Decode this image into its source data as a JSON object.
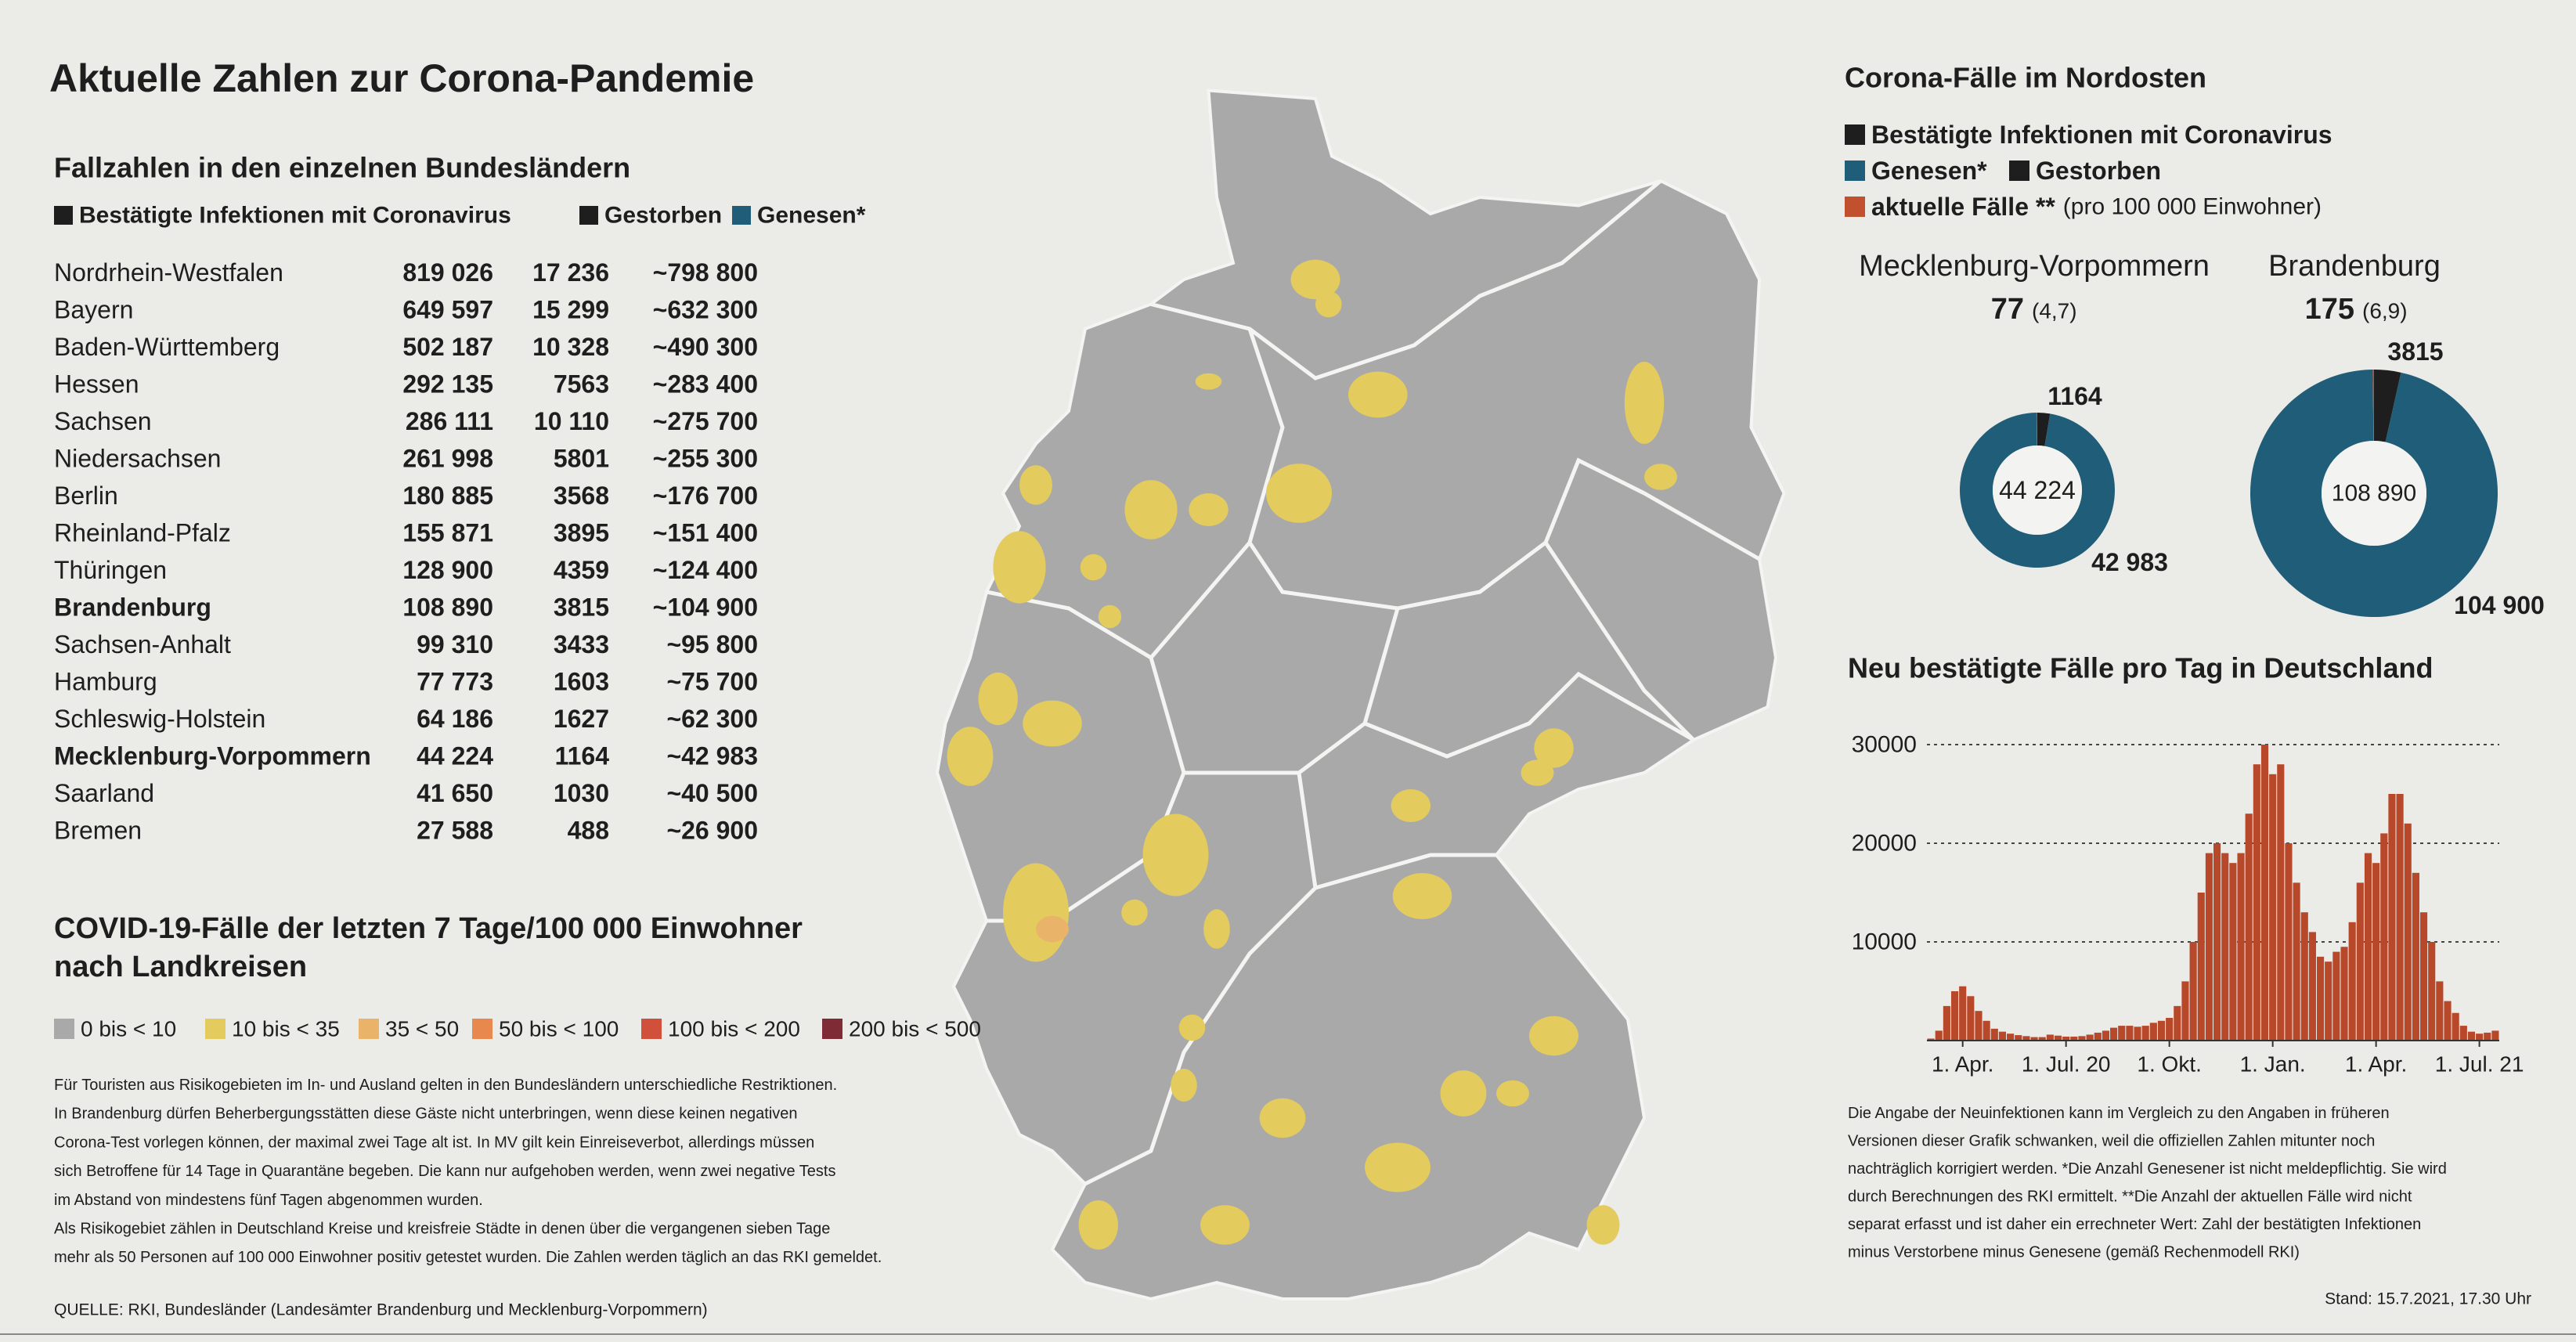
{
  "title": "Aktuelle Zahlen zur Corona-Pandemie",
  "table": {
    "title": "Fallzahlen in den einzelnen Bundesländern",
    "legend": [
      {
        "name": "Bestätigte Infektionen mit Coronavirus",
        "color": "#1e1e1e"
      },
      {
        "name": "Gestorben",
        "color": "#1e1e1e"
      },
      {
        "name": "Genesen*",
        "color": "#1f5d78"
      }
    ],
    "rows": [
      {
        "cells": [
          "Nordrhein-Westfalen",
          "819 026",
          "17 236",
          "~798 800"
        ]
      },
      {
        "cells": [
          "Bayern",
          "649 597",
          "15 299",
          "~632 300"
        ]
      },
      {
        "cells": [
          "Baden-Württemberg",
          "502 187",
          "10 328",
          "~490 300"
        ]
      },
      {
        "cells": [
          "Hessen",
          "292 135",
          "7563",
          "~283 400"
        ]
      },
      {
        "cells": [
          "Sachsen",
          "286 111",
          "10 110",
          "~275 700"
        ]
      },
      {
        "cells": [
          "Niedersachsen",
          "261 998",
          "5801",
          "~255 300"
        ]
      },
      {
        "cells": [
          "Berlin",
          "180 885",
          "3568",
          "~176 700"
        ]
      },
      {
        "cells": [
          "Rheinland-Pfalz",
          "155 871",
          "3895",
          "~151 400"
        ]
      },
      {
        "cells": [
          "Thüringen",
          "128 900",
          "4359",
          "~124 400"
        ]
      },
      {
        "cells": [
          "Brandenburg",
          "108 890",
          "3815",
          "~104 900"
        ],
        "bold": true
      },
      {
        "cells": [
          "Sachsen-Anhalt",
          "99 310",
          "3433",
          "~95 800"
        ]
      },
      {
        "cells": [
          "Hamburg",
          "77 773",
          "1603",
          "~75 700"
        ]
      },
      {
        "cells": [
          "Schleswig-Holstein",
          "64 186",
          "1627",
          "~62 300"
        ]
      },
      {
        "cells": [
          "Mecklenburg-Vorpommern",
          "44 224",
          "1164",
          "~42 983"
        ],
        "bold": true
      },
      {
        "cells": [
          "Saarland",
          "41 650",
          "1030",
          "~40 500"
        ]
      },
      {
        "cells": [
          "Bremen",
          "27 588",
          "488",
          "~26 900"
        ]
      }
    ]
  },
  "map": {
    "title_lines": [
      "COVID-19-Fälle der letzten 7 Tage/100 000 Einwohner",
      "nach Landkreisen"
    ],
    "legend": [
      {
        "label": "0 bis < 10",
        "color": "#a9a9a9"
      },
      {
        "label": "10 bis < 35",
        "color": "#e3cb5e"
      },
      {
        "label": "35 < 50",
        "color": "#eab36a"
      },
      {
        "label": "50 bis < 100",
        "color": "#e8874e"
      },
      {
        "label": "100 bis < 200",
        "color": "#d0503c"
      },
      {
        "label": "200 bis < 500",
        "color": "#7e2b35"
      }
    ]
  },
  "notes": [
    "Für Touristen aus Risikogebieten im In- und Ausland gelten in den Bundesländern unterschiedliche Restriktionen.",
    "In Brandenburg dürfen Beherbergungsstätten diese Gäste nicht unterbringen, wenn diese keinen negativen",
    "Corona-Test vorlegen können, der maximal zwei Tage alt ist. In MV gilt kein Einreiseverbot, allerdings müssen",
    "sich Betroffene für 14 Tage in Quarantäne begeben. Die kann nur aufgehoben werden, wenn zwei negative Tests",
    "im Abstand von mindestens fünf Tagen abgenommen wurden.",
    "Als Risikogebiet zählen in Deutschland Kreise und kreisfreie Städte in denen über die vergangenen sieben Tage",
    "mehr als 50 Personen auf 100 000 Einwohner positiv getestet wurden. Die Zahlen werden täglich an das RKI gemeldet."
  ],
  "source": "QUELLE: RKI, Bundesländer (Landesämter Brandenburg und Mecklenburg-Vorpommern)",
  "northeast": {
    "title": "Corona-Fälle im Nordosten",
    "legend": [
      {
        "name": "Bestätigte Infektionen mit Coronavirus",
        "color": "#1e1e1e"
      },
      {
        "name": "Genesen*",
        "color": "#1f5d78"
      },
      {
        "name": "Gestorben",
        "color": "#1e1e1e"
      },
      {
        "name": "aktuelle Fälle **",
        "note": "(pro 100 000 Einwohner)",
        "color": "#c0502e"
      }
    ]
  },
  "chart_data": [
    {
      "type": "donut",
      "title": "Mecklenburg-Vorpommern",
      "total": {
        "value": 44224,
        "label": "44 224"
      },
      "deaths": 1164,
      "recovered": {
        "value": 42983,
        "label": "42 983"
      },
      "active": 77,
      "rate": {
        "value": 4.7,
        "label": "(4,7)"
      }
    },
    {
      "type": "donut",
      "title": "Brandenburg",
      "total": {
        "value": 108890,
        "label": "108 890"
      },
      "deaths": 3815,
      "recovered": {
        "value": 104900,
        "label": "104 900"
      },
      "active": 175,
      "rate": {
        "value": 6.9,
        "label": "(6,9)"
      }
    },
    {
      "type": "bar",
      "title": "Neu bestätigte Fälle pro Tag in Deutschland",
      "categories": [
        null,
        null,
        null,
        null,
        "1. Apr.",
        null,
        null,
        null,
        null,
        null,
        null,
        null,
        null,
        null,
        null,
        null,
        null,
        "1. Jul. 20",
        null,
        null,
        null,
        null,
        null,
        null,
        null,
        null,
        null,
        null,
        null,
        null,
        "1. Okt.",
        null,
        null,
        null,
        null,
        null,
        null,
        null,
        null,
        null,
        null,
        null,
        null,
        "1. Jan.",
        null,
        null,
        null,
        null,
        null,
        null,
        null,
        null,
        null,
        null,
        null,
        null,
        "1. Apr.",
        null,
        null,
        null,
        null,
        null,
        null,
        null,
        null,
        null,
        null,
        null,
        null,
        "1. Jul. 21",
        null,
        null
      ],
      "values": [
        200,
        1000,
        3500,
        5000,
        5500,
        4500,
        3000,
        2000,
        1200,
        900,
        700,
        550,
        450,
        350,
        350,
        600,
        500,
        400,
        400,
        450,
        600,
        800,
        1000,
        1300,
        1500,
        1500,
        1400,
        1500,
        1800,
        2000,
        2300,
        3500,
        6000,
        10000,
        15000,
        19000,
        20000,
        19000,
        18000,
        19000,
        23000,
        28000,
        30000,
        27000,
        28000,
        20000,
        16000,
        13000,
        11000,
        8500,
        8000,
        9000,
        9500,
        12000,
        16000,
        19000,
        18000,
        21000,
        25000,
        25000,
        22000,
        17000,
        13000,
        10000,
        6000,
        4000,
        2800,
        1500,
        900,
        700,
        800,
        1000
      ],
      "color": "#b8482a",
      "ylim": [
        0,
        35000
      ],
      "yticks": [
        10000,
        20000,
        30000
      ],
      "grid": true
    }
  ],
  "footnote": [
    "Die Angabe der Neuinfektionen kann im Vergleich zu den Angaben in früheren",
    "Versionen dieser Grafik schwanken, weil die offiziellen Zahlen mitunter noch",
    "nachträglich korrigiert werden. *Die Anzahl Genesener ist nicht meldepflichtig. Sie wird",
    "durch Berechnungen des RKI ermittelt. **Die Anzahl der aktuellen Fälle wird nicht",
    "separat erfasst und ist daher ein errechneter Wert: Zahl der bestätigten Infektionen",
    "minus Verstorbene minus Genesene (gemäß Rechenmodell RKI)"
  ],
  "stand": "Stand: 15.7.2021, 17.30 Uhr"
}
